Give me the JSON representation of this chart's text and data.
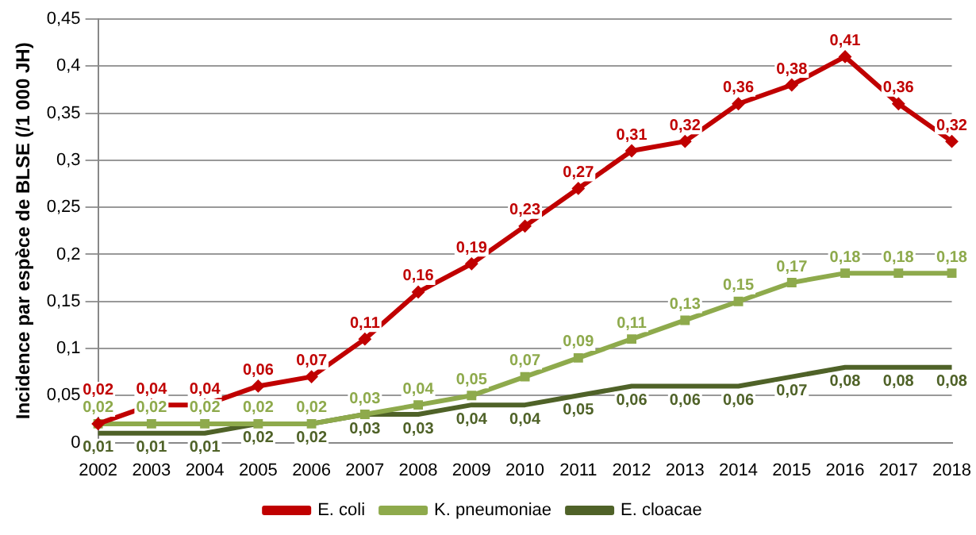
{
  "chart_data": {
    "type": "line",
    "ylabel": "Incidence par espèce de BLSE (/1 000 JH)",
    "categories": [
      "2002",
      "2003",
      "2004",
      "2005",
      "2006",
      "2007",
      "2008",
      "2009",
      "2010",
      "2011",
      "2012",
      "2013",
      "2014",
      "2015",
      "2016",
      "2017",
      "2018"
    ],
    "series": [
      {
        "name": "E. coli",
        "color": "#c00000",
        "marker": "diamond",
        "values": [
          0.02,
          0.04,
          0.04,
          0.06,
          0.07,
          0.11,
          0.16,
          0.19,
          0.23,
          0.27,
          0.31,
          0.32,
          0.36,
          0.38,
          0.41,
          0.36,
          0.32
        ],
        "value_labels": [
          "0,02",
          "0,04",
          "0,04",
          "0,06",
          "0,07",
          "0,11",
          "0,16",
          "0,19",
          "0,23",
          "0,27",
          "0,31",
          "0,32",
          "0,36",
          "0,38",
          "0,41",
          "0,36",
          "0,32"
        ]
      },
      {
        "name": "K. pneumoniae",
        "color": "#8eaa4c",
        "marker": "square",
        "values": [
          0.02,
          0.02,
          0.02,
          0.02,
          0.02,
          0.03,
          0.04,
          0.05,
          0.07,
          0.09,
          0.11,
          0.13,
          0.15,
          0.17,
          0.18,
          0.18,
          0.18
        ],
        "value_labels": [
          "0,02",
          "0,02",
          "0,02",
          "0,02",
          "0,02",
          "0,03",
          "0,04",
          "0,05",
          "0,07",
          "0,09",
          "0,11",
          "0,13",
          "0,15",
          "0,17",
          "0,18",
          "0,18",
          "0,18"
        ]
      },
      {
        "name": "E. cloacae",
        "color": "#4f6228",
        "marker": "none",
        "values": [
          0.01,
          0.01,
          0.01,
          0.02,
          0.02,
          0.03,
          0.03,
          0.04,
          0.04,
          0.05,
          0.06,
          0.06,
          0.06,
          0.07,
          0.08,
          0.08,
          0.08
        ],
        "value_labels": [
          "0,01",
          "0,01",
          "0,01",
          "0,02",
          "0,02",
          "0,03",
          "0,03",
          "0,04",
          "0,04",
          "0,05",
          "0,06",
          "0,06",
          "0,06",
          "0,07",
          "0,08",
          "0,08",
          "0,08"
        ]
      }
    ],
    "ylim": [
      0,
      0.45
    ],
    "yticks": [
      {
        "value": 0,
        "label": "0"
      },
      {
        "value": 0.05,
        "label": "0,05"
      },
      {
        "value": 0.1,
        "label": "0,1"
      },
      {
        "value": 0.15,
        "label": "0,15"
      },
      {
        "value": 0.2,
        "label": "0,2"
      },
      {
        "value": 0.25,
        "label": "0,25"
      },
      {
        "value": 0.3,
        "label": "0,3"
      },
      {
        "value": 0.35,
        "label": "0,35"
      },
      {
        "value": 0.4,
        "label": "0,4"
      },
      {
        "value": 0.45,
        "label": "0,45"
      }
    ],
    "grid": "y",
    "legend": "bottom"
  }
}
